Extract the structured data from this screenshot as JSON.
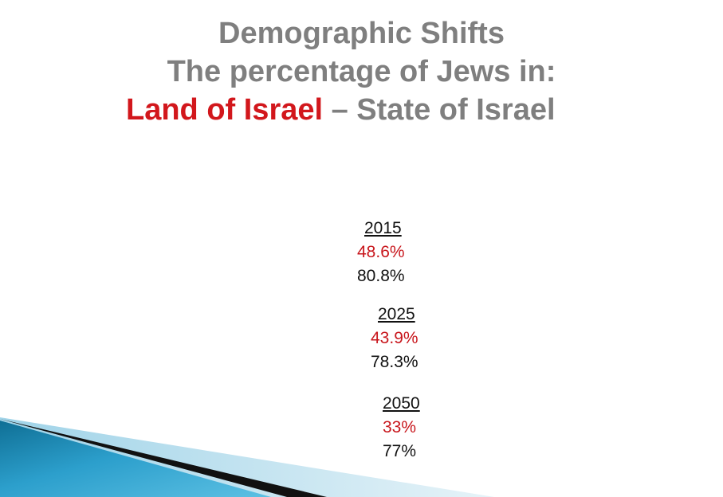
{
  "slide": {
    "title_line1": "Demographic Shifts",
    "title_line2": "The percentage of Jews in:",
    "title_line3_red": "Land of Israel",
    "title_line3_gray": " – State of Israel"
  },
  "data_blocks": [
    {
      "year": "2015",
      "land_of_israel": "48.6%",
      "state_of_israel": "80.8%"
    },
    {
      "year": "2025",
      "land_of_israel": "43.9%",
      "state_of_israel": "78.3%"
    },
    {
      "year": "2050",
      "land_of_israel": "33%",
      "state_of_israel": "77%"
    }
  ],
  "colors": {
    "title_gray": "#7f7f7f",
    "accent_red": "#d2171c",
    "text_dark": "#111111",
    "decor_blue": "#1a8cb5"
  }
}
